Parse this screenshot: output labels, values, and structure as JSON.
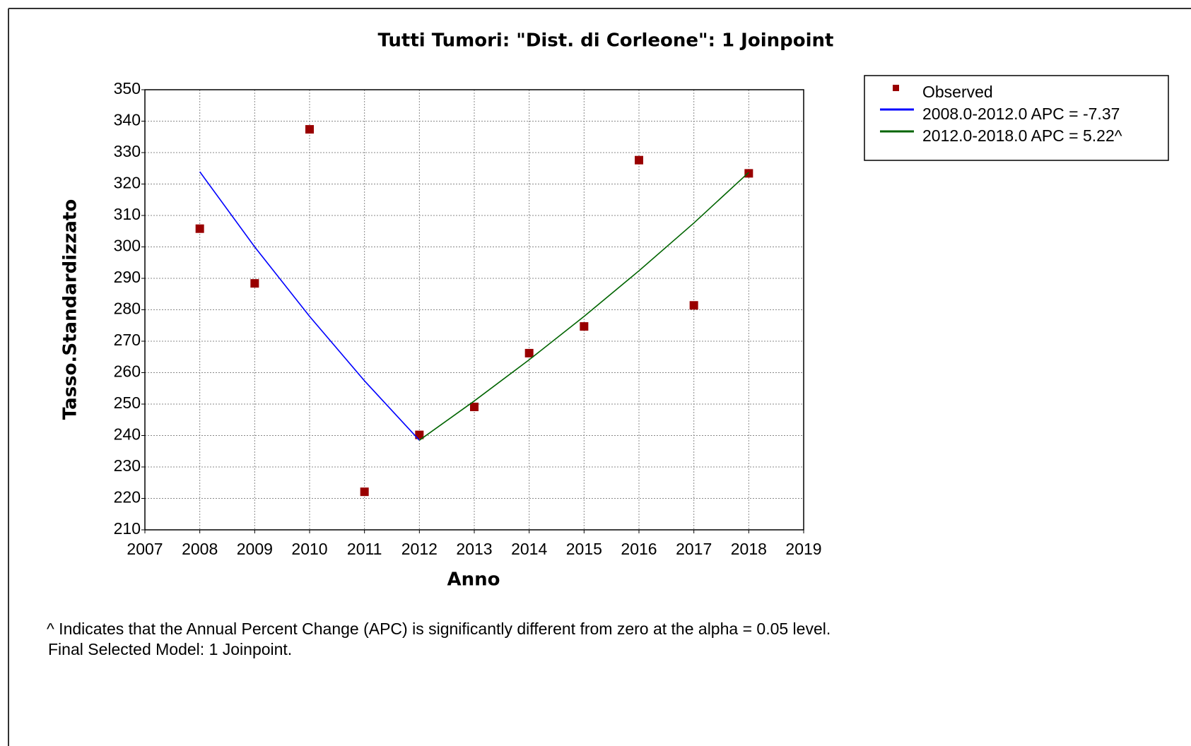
{
  "chart_data": {
    "type": "line",
    "title": "Tutti Tumori: \"Dist. di Corleone\": 1 Joinpoint",
    "x_label": "Anno",
    "y_label": "Tasso.Standardizzato",
    "xlim": [
      2007,
      2019
    ],
    "xticks": [
      2007,
      2008,
      2009,
      2010,
      2011,
      2012,
      2013,
      2014,
      2015,
      2016,
      2017,
      2018,
      2019
    ],
    "ylim": [
      210,
      350
    ],
    "yticks": [
      210,
      220,
      230,
      240,
      250,
      260,
      270,
      280,
      290,
      300,
      310,
      320,
      330,
      340,
      350
    ],
    "grid": true,
    "legend": "outside-right",
    "series": [
      {
        "name": "Observed",
        "type": "scatter",
        "color": "#990000",
        "x": [
          2008,
          2009,
          2010,
          2011,
          2012,
          2013,
          2014,
          2015,
          2016,
          2017,
          2018
        ],
        "values": [
          305.8,
          288.4,
          337.4,
          222.1,
          240.2,
          249.1,
          266.2,
          274.7,
          327.6,
          281.4,
          323.4
        ]
      },
      {
        "name": "2008.0-2012.0 APC = -7.37",
        "type": "line",
        "color": "#0000ff",
        "x": [
          2008,
          2009,
          2010,
          2011,
          2012
        ],
        "values": [
          323.9,
          300.0,
          277.9,
          257.4,
          238.5
        ]
      },
      {
        "name": "2012.0-2018.0 APC = 5.22^",
        "type": "line",
        "color": "#006400",
        "x": [
          2012,
          2013,
          2014,
          2015,
          2016,
          2017,
          2018
        ],
        "values": [
          238.5,
          251.0,
          264.1,
          277.9,
          292.4,
          307.6,
          323.7
        ]
      }
    ],
    "notes": [
      "^ Indicates that the Annual Percent Change (APC) is significantly different from zero at the alpha = 0.05 level.",
      "Final Selected Model: 1 Joinpoint."
    ]
  }
}
